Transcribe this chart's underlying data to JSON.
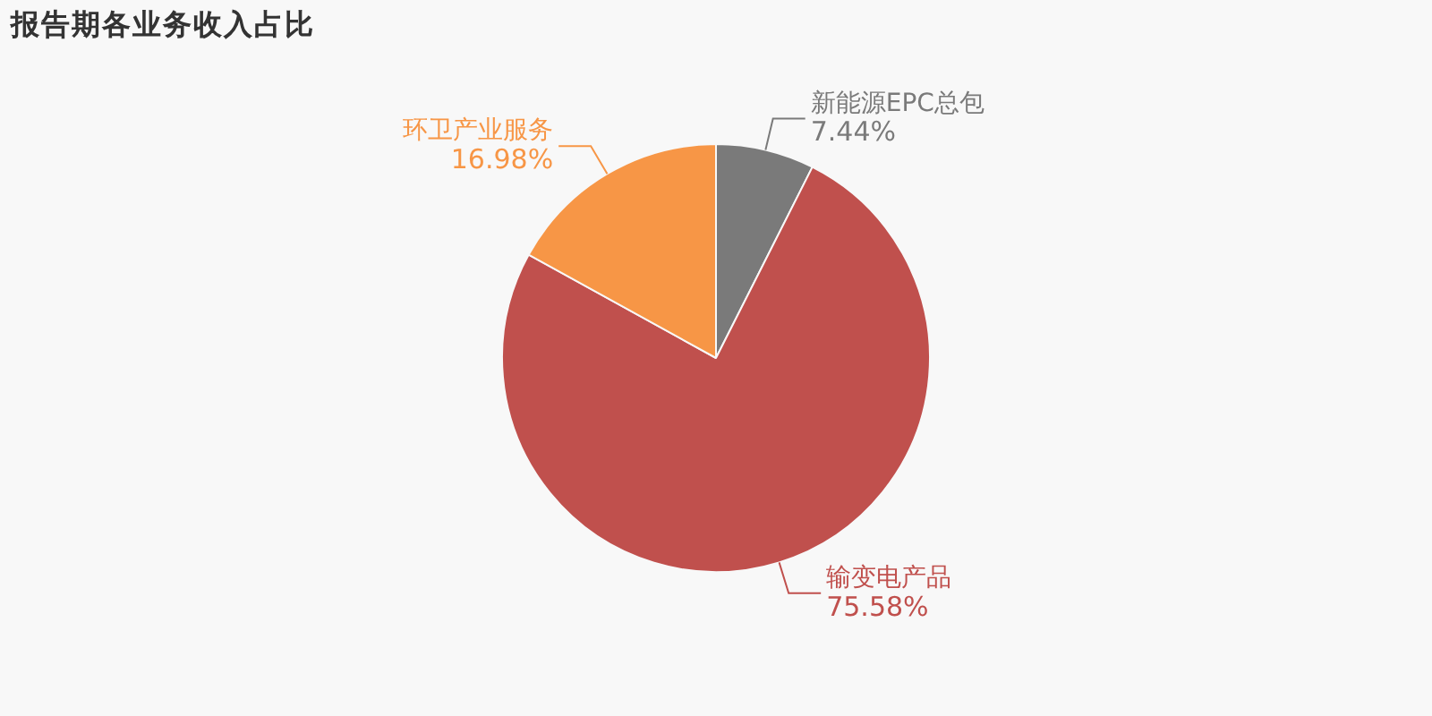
{
  "chart_data": {
    "type": "pie",
    "title": "报告期各业务收入占比",
    "categories": [
      "新能源EPC总包",
      "输变电产品",
      "环卫产业服务"
    ],
    "values": [
      7.44,
      75.58,
      16.98
    ],
    "colors": [
      "#7a7a7a",
      "#c0504d",
      "#f79646"
    ],
    "value_labels": [
      "7.44%",
      "75.58%",
      "16.98%"
    ],
    "legend": false
  }
}
